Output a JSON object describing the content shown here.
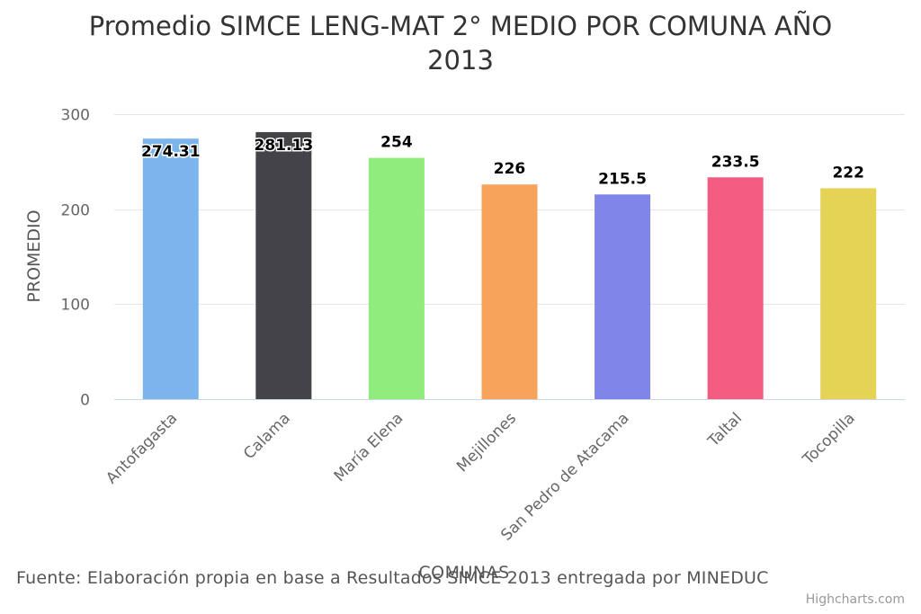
{
  "title": "Promedio SIMCE LENG-MAT 2° MEDIO POR COMUNA AÑO 2013",
  "source": "Fuente: Elaboración propia en base a Resultados SIMCE 2013 entregada por MINEDUC",
  "credits": "Highcharts.com",
  "chart_data": {
    "type": "bar",
    "title": "Promedio SIMCE LENG-MAT 2° MEDIO POR COMUNA AÑO 2013",
    "xlabel": "COMUNAS",
    "ylabel": "PROMEDIO",
    "categories": [
      "Antofagasta",
      "Calama",
      "María Elena",
      "Mejillones",
      "San Pedro de Atacama",
      "Taltal",
      "Tocopilla"
    ],
    "values": [
      274.31,
      281.13,
      254,
      226,
      215.5,
      233.5,
      222
    ],
    "data_labels": [
      "274.31",
      "281.13",
      "254",
      "226",
      "215.5",
      "233.5",
      "222"
    ],
    "colors": [
      "#7cb5ec",
      "#434348",
      "#90ed7d",
      "#f7a35c",
      "#8085e9",
      "#f15c80",
      "#e4d354"
    ],
    "ylim": [
      0,
      300
    ],
    "yticks": [
      0,
      100,
      200,
      300
    ],
    "grid": true,
    "legend": "none"
  }
}
